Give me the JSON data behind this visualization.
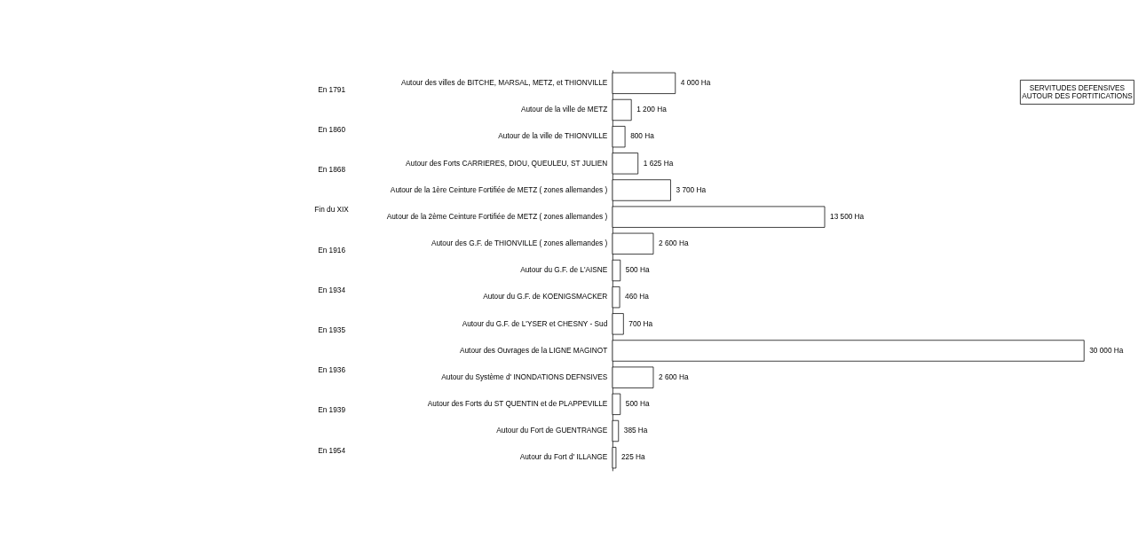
{
  "chart_data": {
    "type": "bar",
    "orientation": "horizontal",
    "title": "SERVITUDES DEFENSIVES\nAUTOUR DES FORTITICATIONS",
    "categories": [
      "Autour des villes de BITCHE, MARSAL, METZ, et THIONVILLE",
      "Autour de la ville de METZ",
      "Autour de la ville de THIONVILLE",
      "Autour des Forts CARRIERES, DIOU, QUEULEU, ST JULIEN",
      "Autour de la 1ère Ceinture Fortifiée de METZ ( zones allemandes )",
      "Autour de la 2ème Ceinture Fortifiée de METZ ( zones allemandes )",
      "Autour des G.F. de THIONVILLE ( zones allemandes )",
      "Autour du G.F. de L'AISNE",
      "Autour du G.F. de KOENIGSMACKER",
      "Autour du G.F. de L'YSER et CHESNY - Sud",
      "Autour des Ouvrages de la LIGNE MAGINOT",
      "Autour du Système d' INONDATIONS DEFNSIVES",
      "Autour des Forts du ST QUENTIN et de PLAPPEVILLE",
      "Autour du Fort de GUENTRANGE",
      "Autour du Fort d' ILLANGE"
    ],
    "values": [
      4000,
      1200,
      800,
      1625,
      3700,
      13500,
      2600,
      500,
      460,
      700,
      30000,
      2600,
      500,
      385,
      225
    ],
    "value_labels": [
      "4 000 Ha",
      "1 200 Ha",
      "800 Ha",
      "1 625 Ha",
      "3 700 Ha",
      "13 500 Ha",
      "2 600 Ha",
      "500 Ha",
      "460 Ha",
      "700 Ha",
      "30 000 Ha",
      "2 600 Ha",
      "500 Ha",
      "385 Ha",
      "225 Ha"
    ],
    "color": "#ffffff",
    "annotations": [
      "En 1791",
      "En 1860",
      "En 1868",
      "Fin du XIX",
      "En 1916",
      "En 1934",
      "En 1935",
      "En 1936",
      "En 1939",
      "En 1954"
    ]
  }
}
